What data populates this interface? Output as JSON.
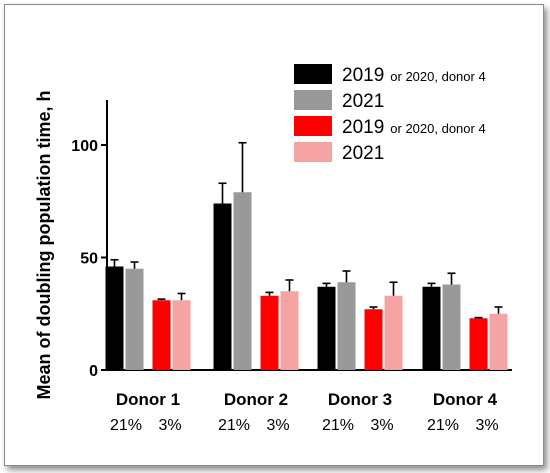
{
  "chart_data": {
    "type": "bar",
    "title": "",
    "ylabel": "Mean of doubling population time, h",
    "xlabel": "",
    "ylim": [
      0,
      120
    ],
    "yticks": [
      0,
      50,
      100
    ],
    "categories": [
      "Donor 1",
      "Donor 2",
      "Donor 3",
      "Donor 4"
    ],
    "oxygen_labels": [
      "21%",
      "3%"
    ],
    "grid": false,
    "legend_position": "top-right",
    "series": [
      {
        "name_main": "2019",
        "name_suffix": "or 2020, donor 4",
        "oxygen": "21%",
        "color": "#000000",
        "values": [
          46,
          74,
          37,
          37
        ],
        "errors": [
          3,
          9,
          1.5,
          1.5
        ]
      },
      {
        "name_main": "2021",
        "name_suffix": "",
        "oxygen": "21%",
        "color": "#999999",
        "values": [
          45,
          79,
          39,
          38
        ],
        "errors": [
          3,
          22,
          5,
          5
        ]
      },
      {
        "name_main": "2019",
        "name_suffix": "or 2020, donor 4",
        "oxygen": "3%",
        "color": "#ff0000",
        "values": [
          31,
          33,
          27,
          23
        ],
        "errors": [
          0.5,
          1.5,
          1,
          0.3
        ]
      },
      {
        "name_main": "2021",
        "name_suffix": "",
        "oxygen": "3%",
        "color": "#f5a3a3",
        "values": [
          31,
          35,
          33,
          25
        ],
        "errors": [
          3,
          5,
          6,
          3
        ]
      }
    ]
  }
}
